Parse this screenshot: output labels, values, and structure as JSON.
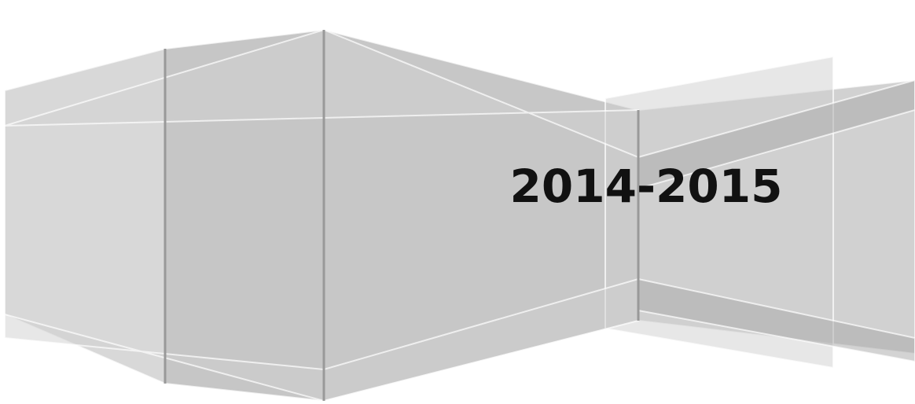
{
  "cover": {
    "year_text": "2014-2015"
  }
}
